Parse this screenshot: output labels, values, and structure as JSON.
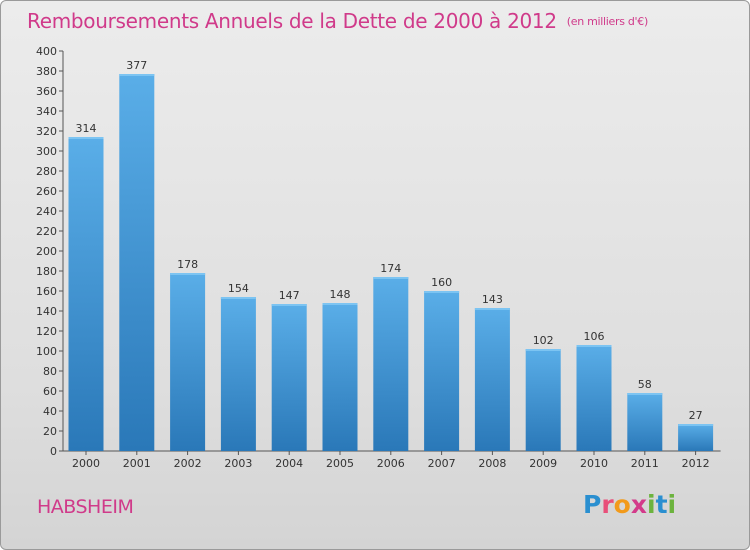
{
  "header": {
    "title": "Remboursements Annuels de la Dette de 2000 à 2012",
    "unit_note": "(en milliers d'€)"
  },
  "footer": {
    "town": "HABSHEIM",
    "logo_text": "Proxiti"
  },
  "colors": {
    "accent": "#d03a8a",
    "bar_top": "#5aaee8",
    "bar_bottom": "#2a78b8"
  },
  "chart_data": {
    "type": "bar",
    "title": "Remboursements Annuels de la Dette de 2000 à 2012",
    "subtitle": "(en milliers d'€)",
    "xlabel": "",
    "ylabel": "",
    "categories": [
      "2000",
      "2001",
      "2002",
      "2003",
      "2004",
      "2005",
      "2006",
      "2007",
      "2008",
      "2009",
      "2010",
      "2011",
      "2012"
    ],
    "values": [
      314,
      377,
      178,
      154,
      147,
      148,
      174,
      160,
      143,
      102,
      106,
      58,
      27
    ],
    "ylim": [
      0,
      400
    ],
    "yticks": [
      0,
      20,
      40,
      60,
      80,
      100,
      120,
      140,
      160,
      180,
      200,
      220,
      240,
      260,
      280,
      300,
      320,
      340,
      360,
      380,
      400
    ],
    "grid": false,
    "legend": "none"
  }
}
